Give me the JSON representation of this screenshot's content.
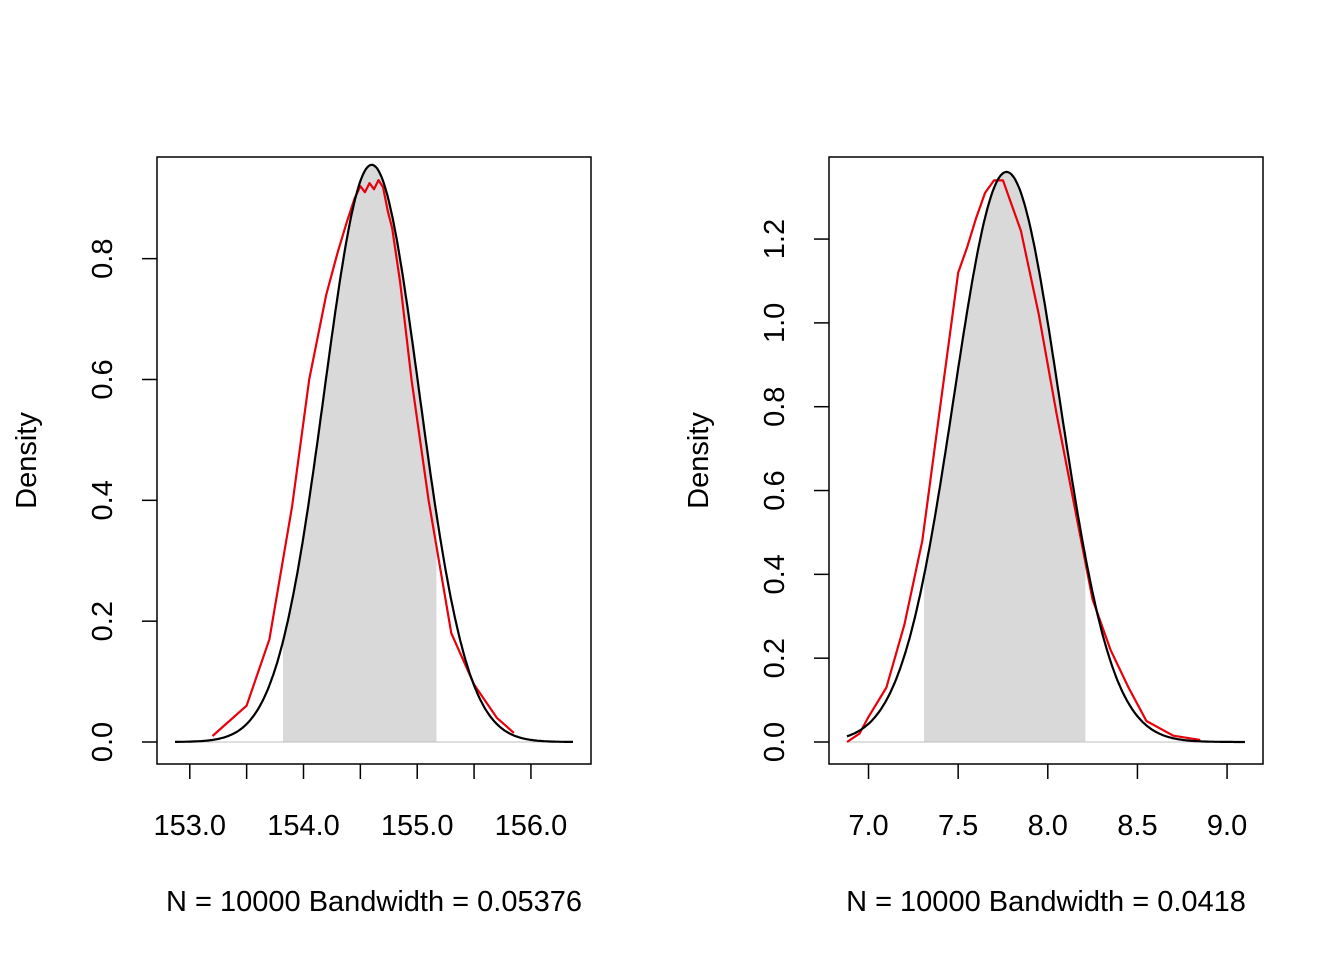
{
  "chart_data": [
    {
      "type": "area",
      "title": "",
      "xlabel": "N = 10000   Bandwidth = 0.05376",
      "ylabel": "Density",
      "xlim": [
        152.87,
        156.37
      ],
      "ylim": [
        0,
        0.955
      ],
      "xticks": [
        153.0,
        153.5,
        154.0,
        154.5,
        155.0,
        155.5,
        156.0
      ],
      "xtick_labels": [
        "153.0",
        "",
        "154.0",
        "",
        "155.0",
        "",
        "156.0"
      ],
      "yticks": [
        0.0,
        0.2,
        0.4,
        0.6,
        0.8
      ],
      "ytick_labels": [
        "0.0",
        "0.2",
        "0.4",
        "0.6",
        "0.8"
      ],
      "shaded_interval": [
        153.82,
        155.17
      ],
      "colors": {
        "shade": "#d9d9d9",
        "kde": "#e8000b",
        "normal": "#000000",
        "baseline": "#bfbfbf"
      },
      "series": [
        {
          "name": "normal density",
          "kind": "normal",
          "mean": 154.6,
          "sd": 0.4176,
          "x_range": [
            152.87,
            156.37
          ]
        },
        {
          "name": "kernel density estimate",
          "kind": "points",
          "x": [
            153.2,
            153.5,
            153.7,
            153.9,
            154.05,
            154.2,
            154.3,
            154.38,
            154.45,
            154.5,
            154.54,
            154.58,
            154.62,
            154.66,
            154.7,
            154.74,
            154.78,
            154.85,
            154.95,
            155.1,
            155.3,
            155.5,
            155.7,
            155.85
          ],
          "y": [
            0.01,
            0.06,
            0.17,
            0.39,
            0.6,
            0.74,
            0.81,
            0.86,
            0.9,
            0.92,
            0.91,
            0.925,
            0.915,
            0.93,
            0.918,
            0.88,
            0.85,
            0.76,
            0.6,
            0.4,
            0.18,
            0.095,
            0.04,
            0.015
          ]
        }
      ]
    },
    {
      "type": "area",
      "title": "",
      "xlabel": "N = 10000   Bandwidth = 0.0418",
      "ylabel": "Density",
      "xlim": [
        6.88,
        9.1
      ],
      "ylim": [
        0,
        1.36
      ],
      "xticks": [
        7.0,
        7.5,
        8.0,
        8.5,
        9.0
      ],
      "xtick_labels": [
        "7.0",
        "7.5",
        "8.0",
        "8.5",
        "9.0"
      ],
      "yticks": [
        0.0,
        0.2,
        0.4,
        0.6,
        0.8,
        1.0,
        1.2
      ],
      "ytick_labels": [
        "0.0",
        "0.2",
        "0.4",
        "0.6",
        "0.8",
        "1.0",
        "1.2"
      ],
      "shaded_interval": [
        7.31,
        8.21
      ],
      "colors": {
        "shade": "#d9d9d9",
        "kde": "#e8000b",
        "normal": "#000000",
        "baseline": "#bfbfbf"
      },
      "series": [
        {
          "name": "normal density",
          "kind": "normal",
          "mean": 7.77,
          "sd": 0.2933,
          "x_range": [
            6.88,
            9.1
          ]
        },
        {
          "name": "kernel density estimate",
          "kind": "points",
          "x": [
            6.88,
            6.95,
            7.0,
            7.1,
            7.2,
            7.3,
            7.4,
            7.5,
            7.55,
            7.6,
            7.65,
            7.7,
            7.75,
            7.8,
            7.85,
            7.95,
            8.05,
            8.15,
            8.25,
            8.35,
            8.45,
            8.55,
            8.7,
            8.85
          ],
          "y": [
            0.0,
            0.02,
            0.06,
            0.13,
            0.28,
            0.48,
            0.8,
            1.12,
            1.18,
            1.25,
            1.31,
            1.34,
            1.34,
            1.28,
            1.22,
            1.02,
            0.78,
            0.56,
            0.34,
            0.22,
            0.13,
            0.05,
            0.015,
            0.005
          ]
        }
      ]
    }
  ]
}
